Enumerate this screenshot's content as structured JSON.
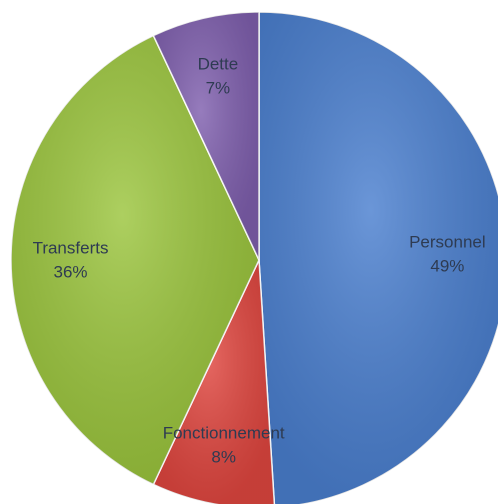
{
  "chart_data": {
    "type": "pie",
    "categories": [
      "Personnel",
      "Fonctionnement",
      "Transferts",
      "Dette"
    ],
    "values": [
      49,
      8,
      36,
      7
    ],
    "value_labels": [
      "49%",
      "8%",
      "36%",
      "7%"
    ],
    "colors": [
      "#4a7fcf",
      "#e0463f",
      "#9bc53d",
      "#7f5fae"
    ]
  }
}
